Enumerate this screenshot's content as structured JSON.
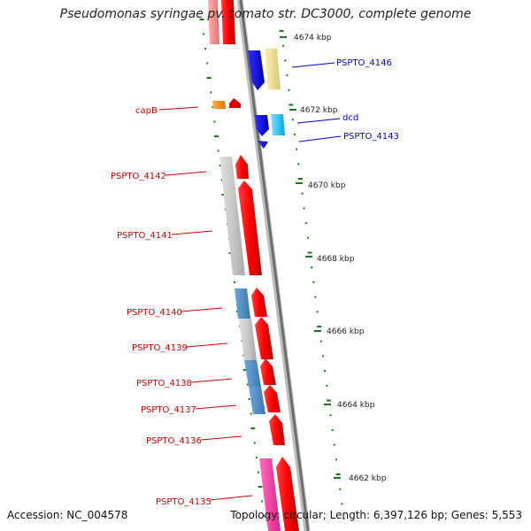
{
  "title": "Pseudomonas syringae pv. tomato str. DC3000, complete genome",
  "footer": {
    "accession": "Accession: NC_004578",
    "topology": "Topology: circular; Length: 6,397,126 bp; Genes: 5,553"
  },
  "colors": {
    "backbone": "#8a8a8a",
    "tick": "#1a7a1a",
    "label_red": "#cc0000",
    "label_blue": "#0000cc"
  },
  "scale_labels": [
    "4674 kbp",
    "4672 kbp",
    "4670 kbp",
    "4668 kbp",
    "4666 kbp",
    "4664 kbp",
    "4662 kbp"
  ],
  "gene_labels_left": [
    "capB",
    "PSPTO_4142",
    "PSPTO_4141",
    "PSPTO_4140",
    "PSPTO_4139",
    "PSPTO_4138",
    "PSPTO_4137",
    "PSPTO_4136",
    "PSPTO_4135"
  ],
  "gene_labels_right": [
    "PSPTO_4146",
    "dcd",
    "PSPTO_4143"
  ]
}
